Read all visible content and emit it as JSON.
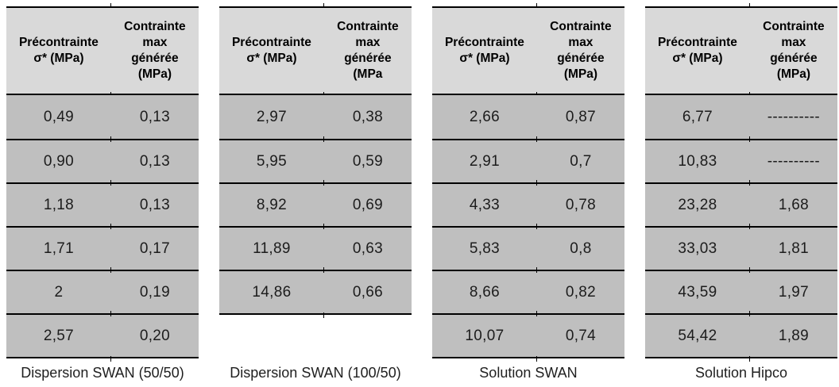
{
  "colors": {
    "page_bg": "#ffffff",
    "header_bg": "#d9d9d9",
    "row_bg": "#bfbfbf",
    "border_color": "#000000"
  },
  "tables": [
    {
      "name": "dispersion-swan-50-50",
      "caption": "Dispersion SWAN (50/50)",
      "col1_header": "Précontrainte\nσ* (MPa)",
      "col2_header": "Contrainte\nmax\ngénérée\n(MPa)",
      "rows": [
        [
          "0,49",
          "0,13"
        ],
        [
          "0,90",
          "0,13"
        ],
        [
          "1,18",
          "0,13"
        ],
        [
          "1,71",
          "0,17"
        ],
        [
          "2",
          "0,19"
        ],
        [
          "2,57",
          "0,20"
        ]
      ]
    },
    {
      "name": "dispersion-swan-100-50",
      "caption": "Dispersion SWAN (100/50)",
      "col1_header": "Précontrainte\nσ* (MPa)",
      "col2_header": "Contrainte\nmax\ngénérée\n(MPa",
      "rows": [
        [
          "2,97",
          "0,38"
        ],
        [
          "5,95",
          "0,59"
        ],
        [
          "8,92",
          "0,69"
        ],
        [
          "11,89",
          "0,63"
        ],
        [
          "14,86",
          "0,66"
        ]
      ]
    },
    {
      "name": "solution-swan",
      "caption": "Solution SWAN",
      "col1_header": "Précontrainte\nσ* (MPa)",
      "col2_header": "Contrainte\nmax\ngénérée\n(MPa)",
      "rows": [
        [
          "2,66",
          "0,87"
        ],
        [
          "2,91",
          "0,7"
        ],
        [
          "4,33",
          "0,78"
        ],
        [
          "5,83",
          "0,8"
        ],
        [
          "8,66",
          "0,82"
        ],
        [
          "10,07",
          "0,74"
        ]
      ]
    },
    {
      "name": "solution-hipco",
      "caption": "Solution Hipco",
      "col1_header": "Précontrainte\nσ* (MPa)",
      "col2_header": "Contrainte\nmax\ngénérée\n(MPa)",
      "rows": [
        [
          "6,77",
          "----------"
        ],
        [
          "10,83",
          "----------"
        ],
        [
          "23,28",
          "1,68"
        ],
        [
          "33,03",
          "1,81"
        ],
        [
          "43,59",
          "1,97"
        ],
        [
          "54,42",
          "1,89"
        ]
      ]
    }
  ]
}
